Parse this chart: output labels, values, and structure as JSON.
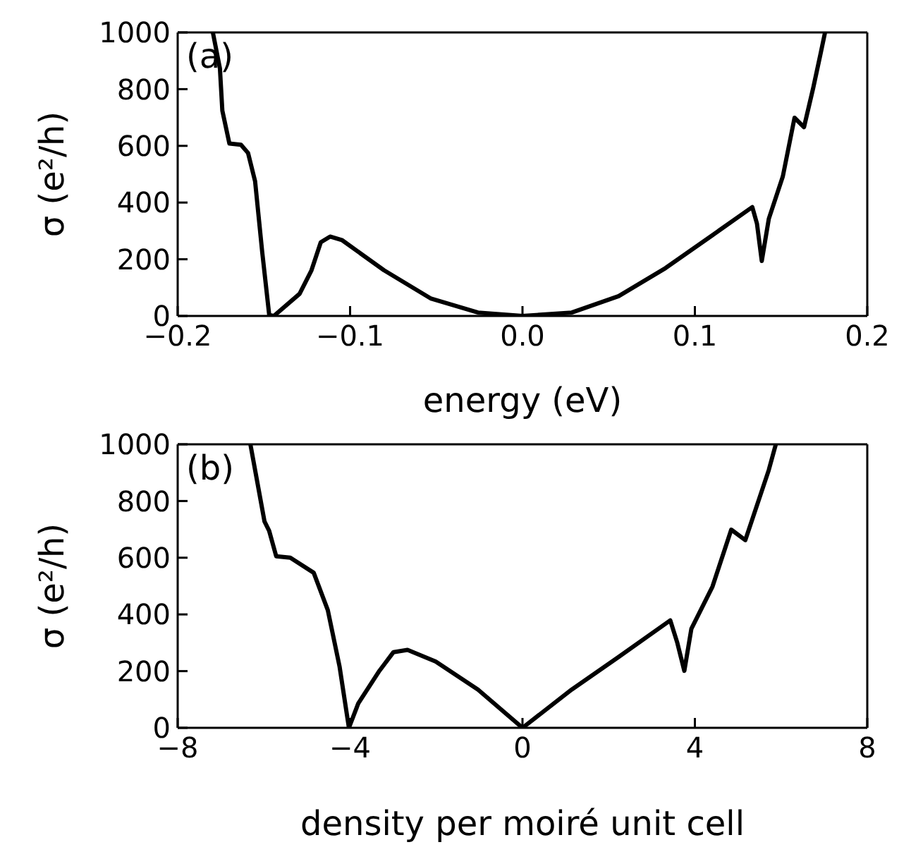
{
  "chart_data": [
    {
      "type": "line",
      "xlabel": "energy (eV)",
      "ylabel": "σ (e²/h)",
      "annotations": [
        "(a)"
      ],
      "xlim": [
        -0.2,
        0.2
      ],
      "xticks": [
        {
          "value": -0.2,
          "label": "−0.2"
        },
        {
          "value": -0.1,
          "label": "−0.1"
        },
        {
          "value": 0,
          "label": "0.0"
        },
        {
          "value": 0.1,
          "label": "0.1"
        },
        {
          "value": 0.2,
          "label": "0.2"
        }
      ],
      "ylim": [
        0,
        1000
      ],
      "yticks": [
        0,
        200,
        400,
        600,
        800,
        1000
      ],
      "legend": false,
      "marker": "none",
      "line_style": "solid",
      "series": [
        {
          "color": "#000000",
          "x": [
            -0.1796,
            -0.1755,
            -0.1741,
            -0.17,
            -0.1633,
            -0.1592,
            -0.1551,
            -0.151,
            -0.1469,
            -0.1442,
            -0.1293,
            -0.1224,
            -0.117,
            -0.1116,
            -0.1048,
            -0.0803,
            -0.053,
            -0.0258,
            0,
            0.0286,
            0.0558,
            0.083,
            0.1102,
            0.1333,
            0.136,
            0.1388,
            0.1429,
            0.151,
            0.1578,
            0.1633,
            0.1687,
            0.1728,
            0.1755
          ],
          "values": [
            1000,
            873,
            724,
            608,
            604,
            575,
            475,
            227,
            3,
            0,
            78,
            161,
            260,
            280,
            268,
            161,
            61,
            12,
            0,
            12,
            70,
            169,
            285,
            384,
            326,
            194,
            343,
            492,
            699,
            666,
            806,
            922,
            1000
          ]
        }
      ]
    },
    {
      "type": "line",
      "xlabel": "density per moiré unit cell",
      "ylabel": "σ (e²/h)",
      "annotations": [
        "(b)"
      ],
      "xlim": [
        -8,
        8
      ],
      "xticks": [
        {
          "value": -8,
          "label": "−8"
        },
        {
          "value": -4,
          "label": "−4"
        },
        0,
        4,
        8
      ],
      "ylim": [
        0,
        1000
      ],
      "yticks": [
        0,
        200,
        400,
        600,
        800,
        1000
      ],
      "legend": false,
      "marker": "none",
      "line_style": "solid",
      "series": [
        {
          "color": "#000000",
          "x": [
            -6.313,
            -5.986,
            -5.878,
            -5.714,
            -5.388,
            -4.844,
            -4.517,
            -4.245,
            -4.027,
            -3.81,
            -3.32,
            -2.993,
            -2.667,
            -2.014,
            -1.034,
            0,
            1.143,
            2.231,
            3.429,
            3.592,
            3.755,
            3.918,
            4.408,
            4.844,
            5.17,
            5.714,
            5.878
          ],
          "values": [
            1000,
            728,
            695,
            605,
            600,
            547,
            415,
            217,
            0,
            86,
            201,
            267,
            275,
            234,
            135,
            0,
            135,
            250,
            379,
            300,
            201,
            349,
            498,
            699,
            662,
            909,
            1000
          ]
        }
      ]
    }
  ]
}
